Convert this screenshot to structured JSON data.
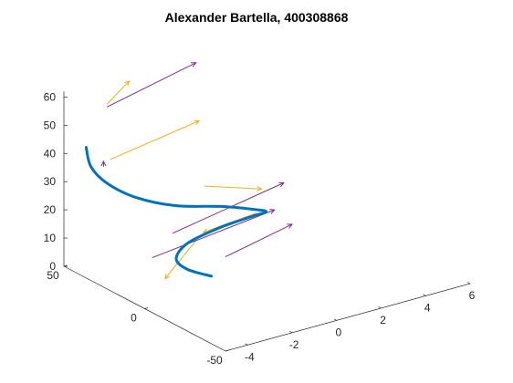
{
  "chart_data": {
    "type": "line",
    "title": "Alexander Bartella, 400308868",
    "xlabel": "",
    "ylabel": "",
    "zlabel": "",
    "xlim": [
      -5,
      6
    ],
    "ylim": [
      -50,
      50
    ],
    "zlim": [
      0,
      60
    ],
    "x_ticks": [
      -4,
      -2,
      0,
      2,
      4,
      6
    ],
    "y_ticks": [
      50,
      0,
      -50
    ],
    "z_ticks": [
      0,
      10,
      20,
      30,
      40,
      50,
      60
    ],
    "grid": false,
    "colors": {
      "curve": "#0072BD",
      "vector_a": "#EDB120",
      "vector_b": "#7E2F8E",
      "axis": "#262626"
    },
    "series": [
      {
        "role": "trajectory",
        "points": [
          {
            "x": -4.0,
            "y": 50,
            "z": 40
          },
          {
            "x": -4.0,
            "y": 47,
            "z": 34
          },
          {
            "x": -3.5,
            "y": 44,
            "z": 28
          },
          {
            "x": -2.5,
            "y": 40,
            "z": 22
          },
          {
            "x": -1.0,
            "y": 36,
            "z": 17
          },
          {
            "x": 0.8,
            "y": 32,
            "z": 14
          },
          {
            "x": 2.0,
            "y": 28,
            "z": 11.5
          },
          {
            "x": 2.2,
            "y": 24,
            "z": 11.5
          },
          {
            "x": 1.2,
            "y": 20,
            "z": 13
          },
          {
            "x": -0.5,
            "y": 16,
            "z": 14
          },
          {
            "x": -2.2,
            "y": 12,
            "z": 13.5
          },
          {
            "x": -3.0,
            "y": 8,
            "z": 11
          },
          {
            "x": -2.8,
            "y": 4,
            "z": 8
          },
          {
            "x": -2.0,
            "y": 0,
            "z": 5
          }
        ]
      },
      {
        "role": "vectors-a",
        "segments": [
          {
            "from": {
              "x": -3.5,
              "y": 44,
              "z": 56
            },
            "to": {
              "x": -2.5,
              "y": 44,
              "z": 62
            }
          },
          {
            "from": {
              "x": -3.5,
              "y": 42,
              "z": 37
            },
            "to": {
              "x": 0.5,
              "y": 42,
              "z": 42
            }
          },
          {
            "from": {
              "x": 0.0,
              "y": 32,
              "z": 23
            },
            "to": {
              "x": 2.0,
              "y": 24,
              "z": 20
            }
          },
          {
            "from": {
              "x": 1.8,
              "y": 24,
              "z": 12
            },
            "to": {
              "x": -1.2,
              "y": 16,
              "z": 14
            }
          },
          {
            "from": {
              "x": -1.5,
              "y": 16,
              "z": 12
            },
            "to": {
              "x": -3.5,
              "y": 8,
              "z": 5
            }
          }
        ]
      },
      {
        "role": "vectors-b",
        "segments": [
          {
            "from": {
              "x": -3.5,
              "y": 44,
              "z": 55
            },
            "to": {
              "x": 0.5,
              "y": 44,
              "z": 62
            }
          },
          {
            "from": {
              "x": -3.8,
              "y": 42,
              "z": 35
            },
            "to": {
              "x": -3.8,
              "y": 42,
              "z": 37
            }
          },
          {
            "from": {
              "x": -2.0,
              "y": 24,
              "z": 13
            },
            "to": {
              "x": 3.0,
              "y": 24,
              "z": 20
            }
          },
          {
            "from": {
              "x": -3.5,
              "y": 16,
              "z": 10
            },
            "to": {
              "x": 2.0,
              "y": 16,
              "z": 15
            }
          },
          {
            "from": {
              "x": -0.5,
              "y": 12,
              "z": 5
            },
            "to": {
              "x": 2.5,
              "y": 12,
              "z": 10
            }
          }
        ]
      }
    ]
  }
}
